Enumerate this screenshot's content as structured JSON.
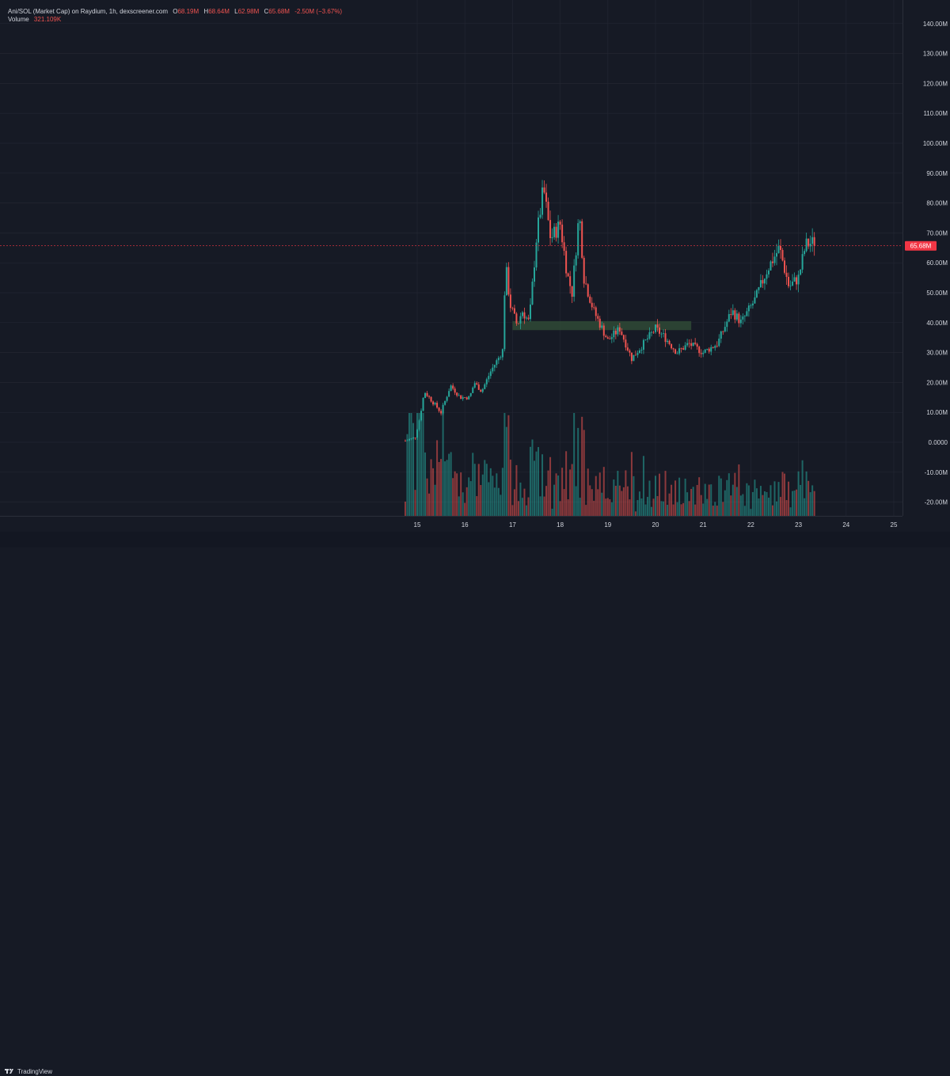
{
  "legend": {
    "symbol": "Ani/SOL (Market Cap) on Raydium, 1h, dexscreener.com",
    "open_label": "O",
    "open": "68.19M",
    "high_label": "H",
    "high": "68.64M",
    "low_label": "L",
    "low": "62.98M",
    "close_label": "C",
    "close": "65.68M",
    "change": "-2.50M (−3.67%)",
    "volume_label": "Volume",
    "volume": "321.109K"
  },
  "brand": {
    "name": "TradingView"
  },
  "colors": {
    "up": "#26a69a",
    "down": "#ef5350",
    "background": "#161a25",
    "grid": "#232632",
    "axis_text": "#d1d4dc",
    "price_tag": "#f23645",
    "zone": "#2f4a36"
  },
  "chart_data": {
    "type": "candlestick",
    "y_tick_labels": [
      "140.00M",
      "130.00M",
      "120.00M",
      "110.00M",
      "100.00M",
      "90.00M",
      "80.00M",
      "70.00M",
      "60.00M",
      "50.00M",
      "40.00M",
      "30.00M",
      "20.00M",
      "10.00M",
      "0.0000",
      "-10.00M",
      "-20.00M"
    ],
    "x_tick_labels": [
      "15",
      "16",
      "17",
      "18",
      "19",
      "20",
      "21",
      "22",
      "23",
      "24",
      "25"
    ],
    "ylim": [
      -25,
      145
    ],
    "current_price": 65.68,
    "current_price_label": "65.68M",
    "zone": {
      "start_day": 17.0,
      "end_day": 20.75,
      "low": 37.5,
      "high": 40.5
    },
    "anchor_points": [
      [
        14.75,
        0.5
      ],
      [
        14.95,
        1.5
      ],
      [
        15.05,
        8
      ],
      [
        15.15,
        17
      ],
      [
        15.35,
        13
      ],
      [
        15.5,
        10
      ],
      [
        15.7,
        19
      ],
      [
        15.9,
        15
      ],
      [
        16.1,
        15
      ],
      [
        16.2,
        20
      ],
      [
        16.35,
        17
      ],
      [
        16.55,
        24
      ],
      [
        16.7,
        28
      ],
      [
        16.8,
        31
      ],
      [
        16.85,
        60
      ],
      [
        16.95,
        46
      ],
      [
        17.1,
        39
      ],
      [
        17.2,
        44
      ],
      [
        17.35,
        40
      ],
      [
        17.5,
        68
      ],
      [
        17.65,
        85
      ],
      [
        17.8,
        68
      ],
      [
        18.0,
        73
      ],
      [
        18.15,
        56
      ],
      [
        18.25,
        50
      ],
      [
        18.4,
        77
      ],
      [
        18.5,
        55
      ],
      [
        18.7,
        44
      ],
      [
        19.0,
        34
      ],
      [
        19.25,
        38
      ],
      [
        19.5,
        28
      ],
      [
        19.75,
        33
      ],
      [
        20.0,
        38
      ],
      [
        20.2,
        35
      ],
      [
        20.45,
        30
      ],
      [
        20.7,
        33
      ],
      [
        21.0,
        30
      ],
      [
        21.3,
        33
      ],
      [
        21.6,
        44
      ],
      [
        21.8,
        40
      ],
      [
        22.1,
        48
      ],
      [
        22.35,
        58
      ],
      [
        22.6,
        65
      ],
      [
        22.8,
        52
      ],
      [
        23.0,
        55
      ],
      [
        23.15,
        66
      ],
      [
        23.35,
        67
      ]
    ],
    "volume_scale": {
      "spacing_per_candle": 1,
      "max_volume_label": ""
    }
  }
}
